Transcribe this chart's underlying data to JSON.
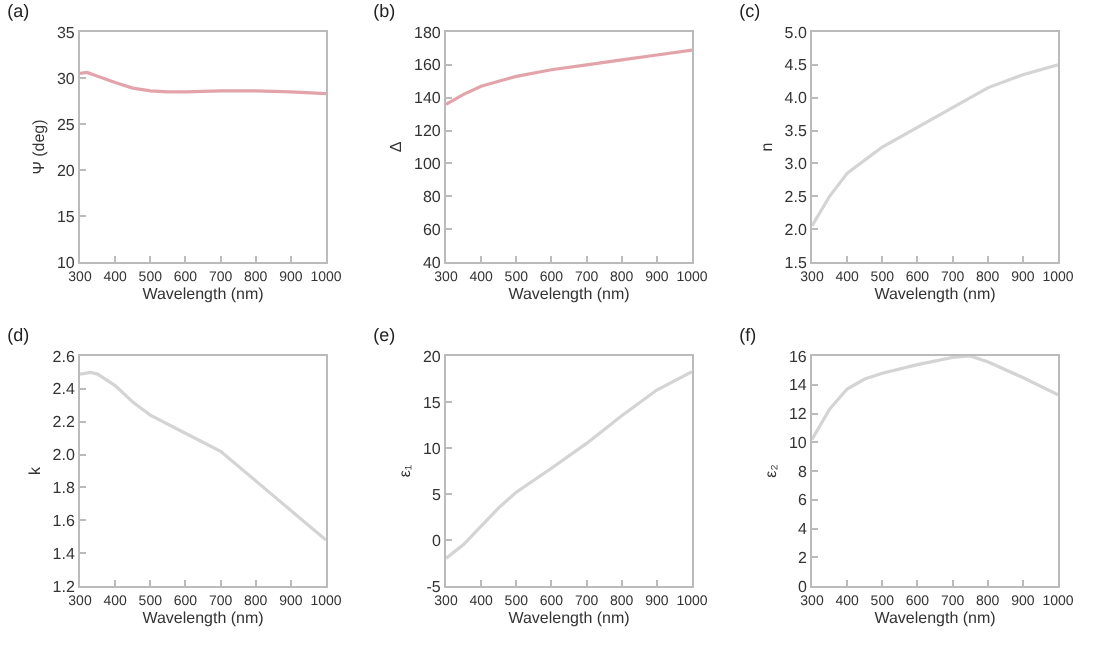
{
  "chart_data": [
    {
      "type": "line",
      "title": "(a)",
      "xlabel": "Wavelength (nm)",
      "ylabel": "Ψ (deg)",
      "x": [
        300,
        320,
        350,
        400,
        450,
        500,
        550,
        600,
        700,
        800,
        900,
        1000
      ],
      "series": [
        {
          "color": "#e3a3aa",
          "values": [
            30.5,
            30.6,
            30.2,
            29.5,
            28.9,
            28.6,
            28.5,
            28.5,
            28.6,
            28.6,
            28.5,
            28.3
          ]
        }
      ],
      "xlim": [
        300,
        1000
      ],
      "xticks": [
        300,
        400,
        500,
        600,
        700,
        800,
        900,
        1000
      ],
      "ylim": [
        10,
        35
      ],
      "yticks": [
        10,
        15,
        20,
        25,
        30,
        35
      ],
      "grid": false
    },
    {
      "type": "line",
      "title": "(b)",
      "xlabel": "Wavelength (nm)",
      "ylabel": "Δ",
      "x": [
        300,
        350,
        400,
        450,
        500,
        600,
        700,
        800,
        900,
        1000
      ],
      "series": [
        {
          "color": "#e3a3aa",
          "values": [
            136,
            142,
            147,
            150,
            153,
            157,
            160,
            163,
            166,
            169
          ]
        }
      ],
      "xlim": [
        300,
        1000
      ],
      "xticks": [
        300,
        400,
        500,
        600,
        700,
        800,
        900,
        1000
      ],
      "ylim": [
        40,
        180
      ],
      "yticks": [
        40,
        60,
        80,
        100,
        120,
        140,
        160,
        180
      ],
      "grid": false
    },
    {
      "type": "line",
      "title": "(c)",
      "xlabel": "Wavelength (nm)",
      "ylabel": "n",
      "x": [
        300,
        350,
        400,
        450,
        500,
        600,
        700,
        800,
        900,
        1000
      ],
      "series": [
        {
          "color": "#d4d4d4",
          "values": [
            2.05,
            2.5,
            2.85,
            3.05,
            3.25,
            3.55,
            3.85,
            4.15,
            4.35,
            4.5
          ]
        }
      ],
      "xlim": [
        300,
        1000
      ],
      "xticks": [
        300,
        400,
        500,
        600,
        700,
        800,
        900,
        1000
      ],
      "ylim": [
        1.5,
        5
      ],
      "yticks": [
        {
          "value": 1.5,
          "label": "1.5"
        },
        {
          "value": 2,
          "label": "2.0"
        },
        {
          "value": 2.5,
          "label": "2.5"
        },
        {
          "value": 3,
          "label": "3.0"
        },
        {
          "value": 3.5,
          "label": "3.5"
        },
        {
          "value": 4,
          "label": "4.0"
        },
        {
          "value": 4.5,
          "label": "4.5"
        },
        {
          "value": 5,
          "label": "5.0"
        }
      ],
      "grid": false
    },
    {
      "type": "line",
      "title": "(d)",
      "xlabel": "Wavelength (nm)",
      "ylabel": "k",
      "x": [
        300,
        330,
        350,
        400,
        450,
        500,
        600,
        700,
        800,
        900,
        1000
      ],
      "series": [
        {
          "color": "#d4d4d4",
          "values": [
            2.49,
            2.5,
            2.49,
            2.42,
            2.32,
            2.24,
            2.13,
            2.02,
            1.84,
            1.66,
            1.48
          ]
        }
      ],
      "xlim": [
        300,
        1000
      ],
      "xticks": [
        300,
        400,
        500,
        600,
        700,
        800,
        900,
        1000
      ],
      "ylim": [
        1.2,
        2.6
      ],
      "yticks": [
        1.2,
        1.4,
        1.6,
        1.8,
        {
          "value": 2,
          "label": "2.0"
        },
        2.2,
        2.4,
        2.6
      ],
      "grid": false
    },
    {
      "type": "line",
      "title": "(e)",
      "xlabel": "Wavelength (nm)",
      "ylabel": "ε₁",
      "x": [
        300,
        350,
        400,
        450,
        500,
        600,
        700,
        800,
        900,
        1000
      ],
      "series": [
        {
          "color": "#d4d4d4",
          "values": [
            -2,
            -0.5,
            1.5,
            3.5,
            5.2,
            7.8,
            10.5,
            13.5,
            16.3,
            18.3
          ]
        }
      ],
      "xlim": [
        300,
        1000
      ],
      "xticks": [
        300,
        400,
        500,
        600,
        700,
        800,
        900,
        1000
      ],
      "ylim": [
        -5,
        20
      ],
      "yticks": [
        -5,
        0,
        5,
        10,
        15,
        20
      ],
      "grid": false
    },
    {
      "type": "line",
      "title": "(f)",
      "xlabel": "Wavelength (nm)",
      "ylabel": "ε₂",
      "x": [
        300,
        350,
        400,
        450,
        500,
        600,
        700,
        750,
        800,
        900,
        1000
      ],
      "series": [
        {
          "color": "#d4d4d4",
          "values": [
            10.2,
            12.3,
            13.7,
            14.4,
            14.8,
            15.4,
            15.9,
            16,
            15.6,
            14.5,
            13.3
          ]
        }
      ],
      "xlim": [
        300,
        1000
      ],
      "xticks": [
        300,
        400,
        500,
        600,
        700,
        800,
        900,
        1000
      ],
      "ylim": [
        0,
        16
      ],
      "yticks": [
        0,
        2,
        4,
        6,
        8,
        10,
        12,
        14,
        16
      ],
      "grid": false
    }
  ]
}
